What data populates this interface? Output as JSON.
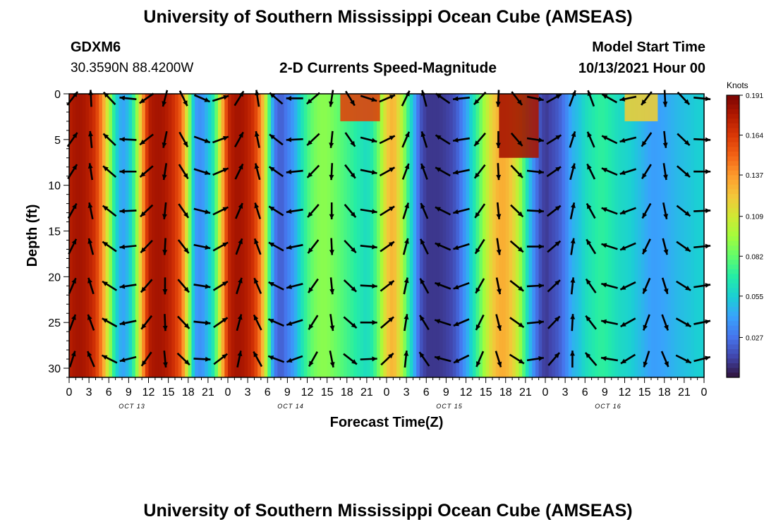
{
  "header": {
    "title": "University of Southern Mississippi Ocean Cube (AMSEAS)",
    "station_id": "GDXM6",
    "station_coords": "30.3590N  88.4200W",
    "subtitle": "2-D Currents Speed-Magnitude",
    "model_start_label": "Model Start Time",
    "model_start_value": "10/13/2021 Hour 00"
  },
  "footer": {
    "title": "University of Southern Mississippi Ocean Cube (AMSEAS)"
  },
  "colors": {
    "colormap": [
      "#30123b",
      "#4145ab",
      "#4675ed",
      "#39a2fc",
      "#1bcfd4",
      "#24eca6",
      "#61fc6c",
      "#a4fc3b",
      "#d1e834",
      "#f3c63a",
      "#fe9b2d",
      "#f36315",
      "#d93806",
      "#b11901",
      "#7a0403"
    ],
    "arrow": "#000000"
  },
  "chart_data": {
    "type": "heatmap",
    "xlabel": "Forecast Time(Z)",
    "ylabel": "Depth (ft)",
    "ylim": [
      0,
      31
    ],
    "y_ticks": [
      "0",
      "5",
      "10",
      "15",
      "20",
      "25",
      "30"
    ],
    "x_ticks": [
      "0",
      "3",
      "6",
      "9",
      "12",
      "15",
      "18",
      "21",
      "0",
      "3",
      "6",
      "9",
      "12",
      "15",
      "18",
      "21",
      "0",
      "3",
      "6",
      "9",
      "12",
      "15",
      "18",
      "21",
      "0",
      "3",
      "6",
      "9",
      "12",
      "15",
      "18",
      "21",
      "0"
    ],
    "x_range_hours": [
      0,
      96
    ],
    "day_labels": [
      {
        "label": "OCT 13",
        "hour": 9.5
      },
      {
        "label": "OCT 14",
        "hour": 33.5
      },
      {
        "label": "OCT 15",
        "hour": 57.5
      },
      {
        "label": "OCT 16",
        "hour": 81.5
      }
    ],
    "colorbar": {
      "label": "Knots",
      "min": 0,
      "max": 0.191,
      "ticks": [
        "0.191",
        "0.164",
        "0.137",
        "0.109",
        "0.082",
        "0.055",
        "0.027"
      ]
    },
    "speed_profile_hours": [
      0,
      1,
      2,
      3,
      4,
      5,
      6,
      7,
      8,
      9,
      10,
      11,
      12,
      13,
      14,
      15,
      16,
      17,
      18,
      19,
      20,
      21,
      22,
      23,
      24,
      25,
      26,
      27,
      28,
      29,
      30,
      31,
      32,
      33,
      34,
      35,
      36,
      37,
      38,
      39,
      40,
      41,
      42,
      43,
      44,
      45,
      46,
      47,
      48,
      49,
      50,
      51,
      52,
      53,
      54,
      55,
      56,
      57,
      58,
      59,
      60,
      61,
      62,
      63,
      64,
      65,
      66,
      67,
      68,
      69,
      70,
      71,
      72,
      73,
      74,
      75,
      76,
      77,
      78,
      79,
      80,
      81,
      82,
      83,
      84,
      85,
      86,
      87,
      88,
      89,
      90,
      91,
      92,
      93,
      94,
      95,
      96
    ],
    "speed_profile_knots": [
      0.175,
      0.18,
      0.18,
      0.175,
      0.165,
      0.14,
      0.1,
      0.06,
      0.04,
      0.05,
      0.08,
      0.13,
      0.175,
      0.18,
      0.18,
      0.175,
      0.165,
      0.15,
      0.1,
      0.04,
      0.035,
      0.05,
      0.07,
      0.12,
      0.17,
      0.18,
      0.18,
      0.175,
      0.165,
      0.14,
      0.09,
      0.03,
      0.02,
      0.03,
      0.04,
      0.06,
      0.075,
      0.085,
      0.09,
      0.09,
      0.085,
      0.08,
      0.075,
      0.07,
      0.065,
      0.06,
      0.07,
      0.09,
      0.12,
      0.13,
      0.11,
      0.08,
      0.05,
      0.02,
      0.01,
      0.01,
      0.01,
      0.012,
      0.015,
      0.025,
      0.04,
      0.06,
      0.08,
      0.1,
      0.12,
      0.13,
      0.13,
      0.12,
      0.1,
      0.07,
      0.04,
      0.02,
      0.01,
      0.015,
      0.02,
      0.03,
      0.045,
      0.05,
      0.06,
      0.065,
      0.07,
      0.07,
      0.065,
      0.06,
      0.058,
      0.055,
      0.05,
      0.045,
      0.04,
      0.04,
      0.042,
      0.045,
      0.048,
      0.05,
      0.052,
      0.055,
      0.055
    ],
    "surface_hotspots": [
      {
        "hour_start": 41,
        "hour_end": 47,
        "depth_max_ft": 3,
        "knots": 0.16
      },
      {
        "hour_start": 65,
        "hour_end": 71,
        "depth_max_ft": 7,
        "knots": 0.18
      },
      {
        "hour_start": 84,
        "hour_end": 89,
        "depth_max_ft": 3,
        "knots": 0.12
      }
    ],
    "vector_depths_ft": [
      0.5,
      5,
      8.5,
      12.8,
      16.7,
      21,
      25,
      29
    ]
  }
}
